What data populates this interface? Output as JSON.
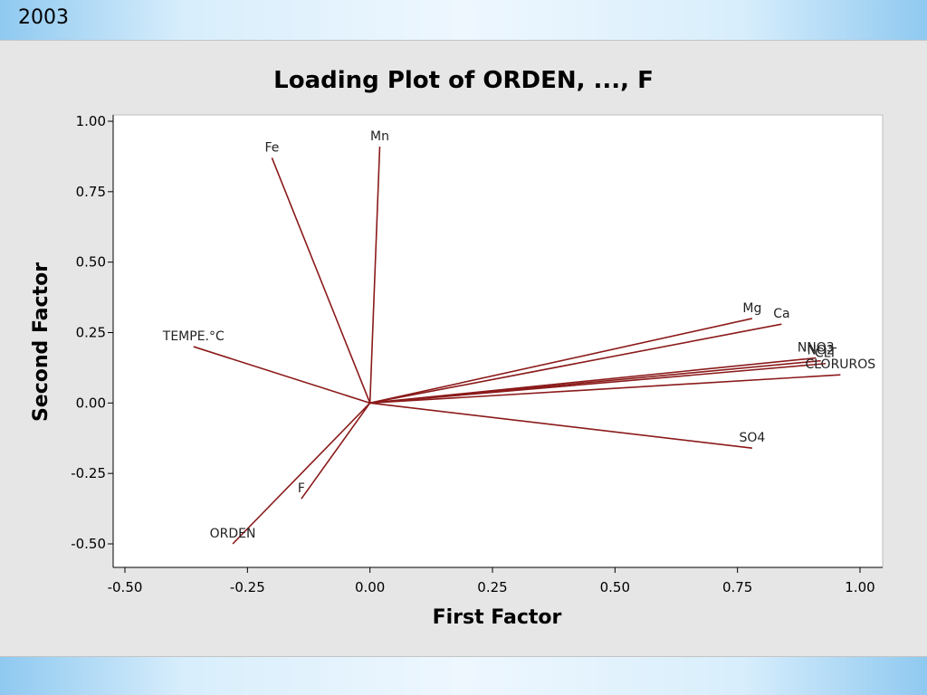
{
  "slide": {
    "label": "2003"
  },
  "chart_data": {
    "type": "line",
    "title": "Loading Plot of ORDEN, ..., F",
    "xlabel": "First Factor",
    "ylabel": "Second Factor",
    "xlim": [
      -0.5,
      1.0
    ],
    "ylim": [
      -0.5,
      1.0
    ],
    "x_ticks": [
      "-0.50",
      "-0.25",
      "0.00",
      "0.25",
      "0.50",
      "0.75",
      "1.00"
    ],
    "y_ticks": [
      "1.00",
      "0.75",
      "0.50",
      "0.25",
      "0.00",
      "-0.25",
      "-0.50"
    ],
    "grid": false,
    "line_color": "#8b1a1a",
    "loadings": [
      {
        "label": "Fe",
        "x": -0.2,
        "y": 0.87
      },
      {
        "label": "Mn",
        "x": 0.02,
        "y": 0.91
      },
      {
        "label": "TEMPE.°C",
        "x": -0.36,
        "y": 0.2
      },
      {
        "label": "Mg",
        "x": 0.78,
        "y": 0.3
      },
      {
        "label": "Ca",
        "x": 0.84,
        "y": 0.28
      },
      {
        "label": "NNO3",
        "x": 0.91,
        "y": 0.16
      },
      {
        "label": "NO2",
        "x": 0.92,
        "y": 0.15
      },
      {
        "label": "CLT",
        "x": 0.93,
        "y": 0.14
      },
      {
        "label": "CLORUROS",
        "x": 0.96,
        "y": 0.1
      },
      {
        "label": "SO4",
        "x": 0.78,
        "y": -0.16
      },
      {
        "label": "F",
        "x": -0.14,
        "y": -0.34
      },
      {
        "label": "ORDEN",
        "x": -0.28,
        "y": -0.5
      }
    ]
  }
}
